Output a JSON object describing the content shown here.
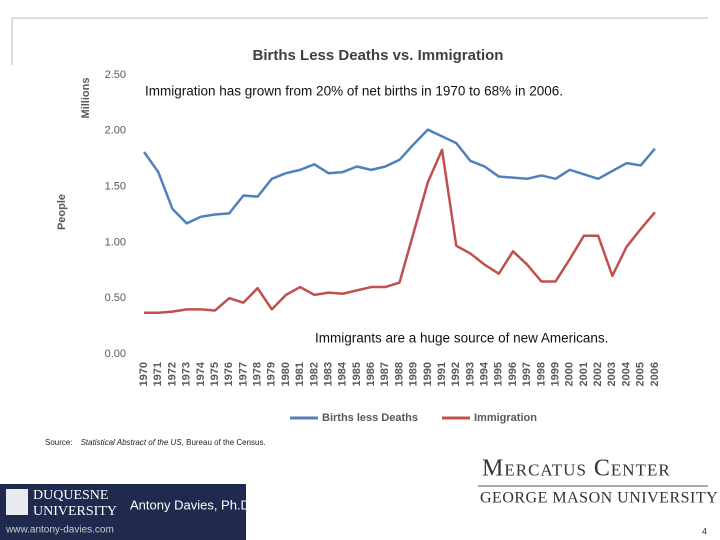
{
  "chart_data": {
    "type": "line",
    "title": "Births Less Deaths vs. Immigration",
    "y_label_units": "Millions",
    "y_label": "People",
    "annotations": [
      "Immigration has grown from 20% of net births in 1970 to 68% in 2006.",
      "Immigrants are a huge source of new Americans."
    ],
    "categories": [
      "1970",
      "1971",
      "1972",
      "1973",
      "1974",
      "1975",
      "1976",
      "1977",
      "1978",
      "1979",
      "1980",
      "1981",
      "1982",
      "1983",
      "1984",
      "1985",
      "1986",
      "1987",
      "1988",
      "1989",
      "1990",
      "1991",
      "1992",
      "1993",
      "1994",
      "1995",
      "1996",
      "1997",
      "1998",
      "1999",
      "2000",
      "2001",
      "2002",
      "2003",
      "2004",
      "2005",
      "2006"
    ],
    "series": [
      {
        "name": "Births less Deaths",
        "color": "#4f81bd",
        "values": [
          1.81,
          1.63,
          1.3,
          1.17,
          1.23,
          1.25,
          1.26,
          1.42,
          1.41,
          1.57,
          1.62,
          1.65,
          1.7,
          1.62,
          1.63,
          1.68,
          1.65,
          1.68,
          1.74,
          1.88,
          2.01,
          1.95,
          1.89,
          1.73,
          1.68,
          1.59,
          1.58,
          1.57,
          1.6,
          1.57,
          1.65,
          1.61,
          1.57,
          1.64,
          1.71,
          1.69,
          1.84
        ]
      },
      {
        "name": "Immigration",
        "color": "#c0504d",
        "values": [
          0.37,
          0.37,
          0.38,
          0.4,
          0.4,
          0.39,
          0.5,
          0.46,
          0.59,
          0.4,
          0.53,
          0.6,
          0.53,
          0.55,
          0.54,
          0.57,
          0.6,
          0.6,
          0.64,
          1.09,
          1.54,
          1.83,
          0.97,
          0.9,
          0.8,
          0.72,
          0.92,
          0.8,
          0.65,
          0.65,
          0.85,
          1.06,
          1.06,
          0.7,
          0.96,
          1.12,
          1.27
        ]
      }
    ],
    "ylim": [
      0,
      2.5
    ],
    "yticks": [
      {
        "value": 0,
        "label": "0.00"
      },
      {
        "value": 0.5,
        "label": "0.50"
      },
      {
        "value": 1,
        "label": "1.00"
      },
      {
        "value": 1.5,
        "label": "1.50"
      },
      {
        "value": 2,
        "label": "2.00"
      },
      {
        "value": 2.5,
        "label": "2.50"
      }
    ],
    "grid": false,
    "legend": "bottom"
  },
  "source": {
    "prefix": "Source:",
    "publication": "Statistical Abstract of the US",
    "rest": ", Bureau of the Census."
  },
  "logos": {
    "mercatus": "Mercatus Center",
    "gmu": "GEORGE MASON UNIVERSITY",
    "duquesne_1": "DUQUESNE",
    "duquesne_2": "UNIVERSITY",
    "author": "Antony Davies, Ph.D.",
    "website": "www.antony-davies.com"
  },
  "page_number": 4
}
